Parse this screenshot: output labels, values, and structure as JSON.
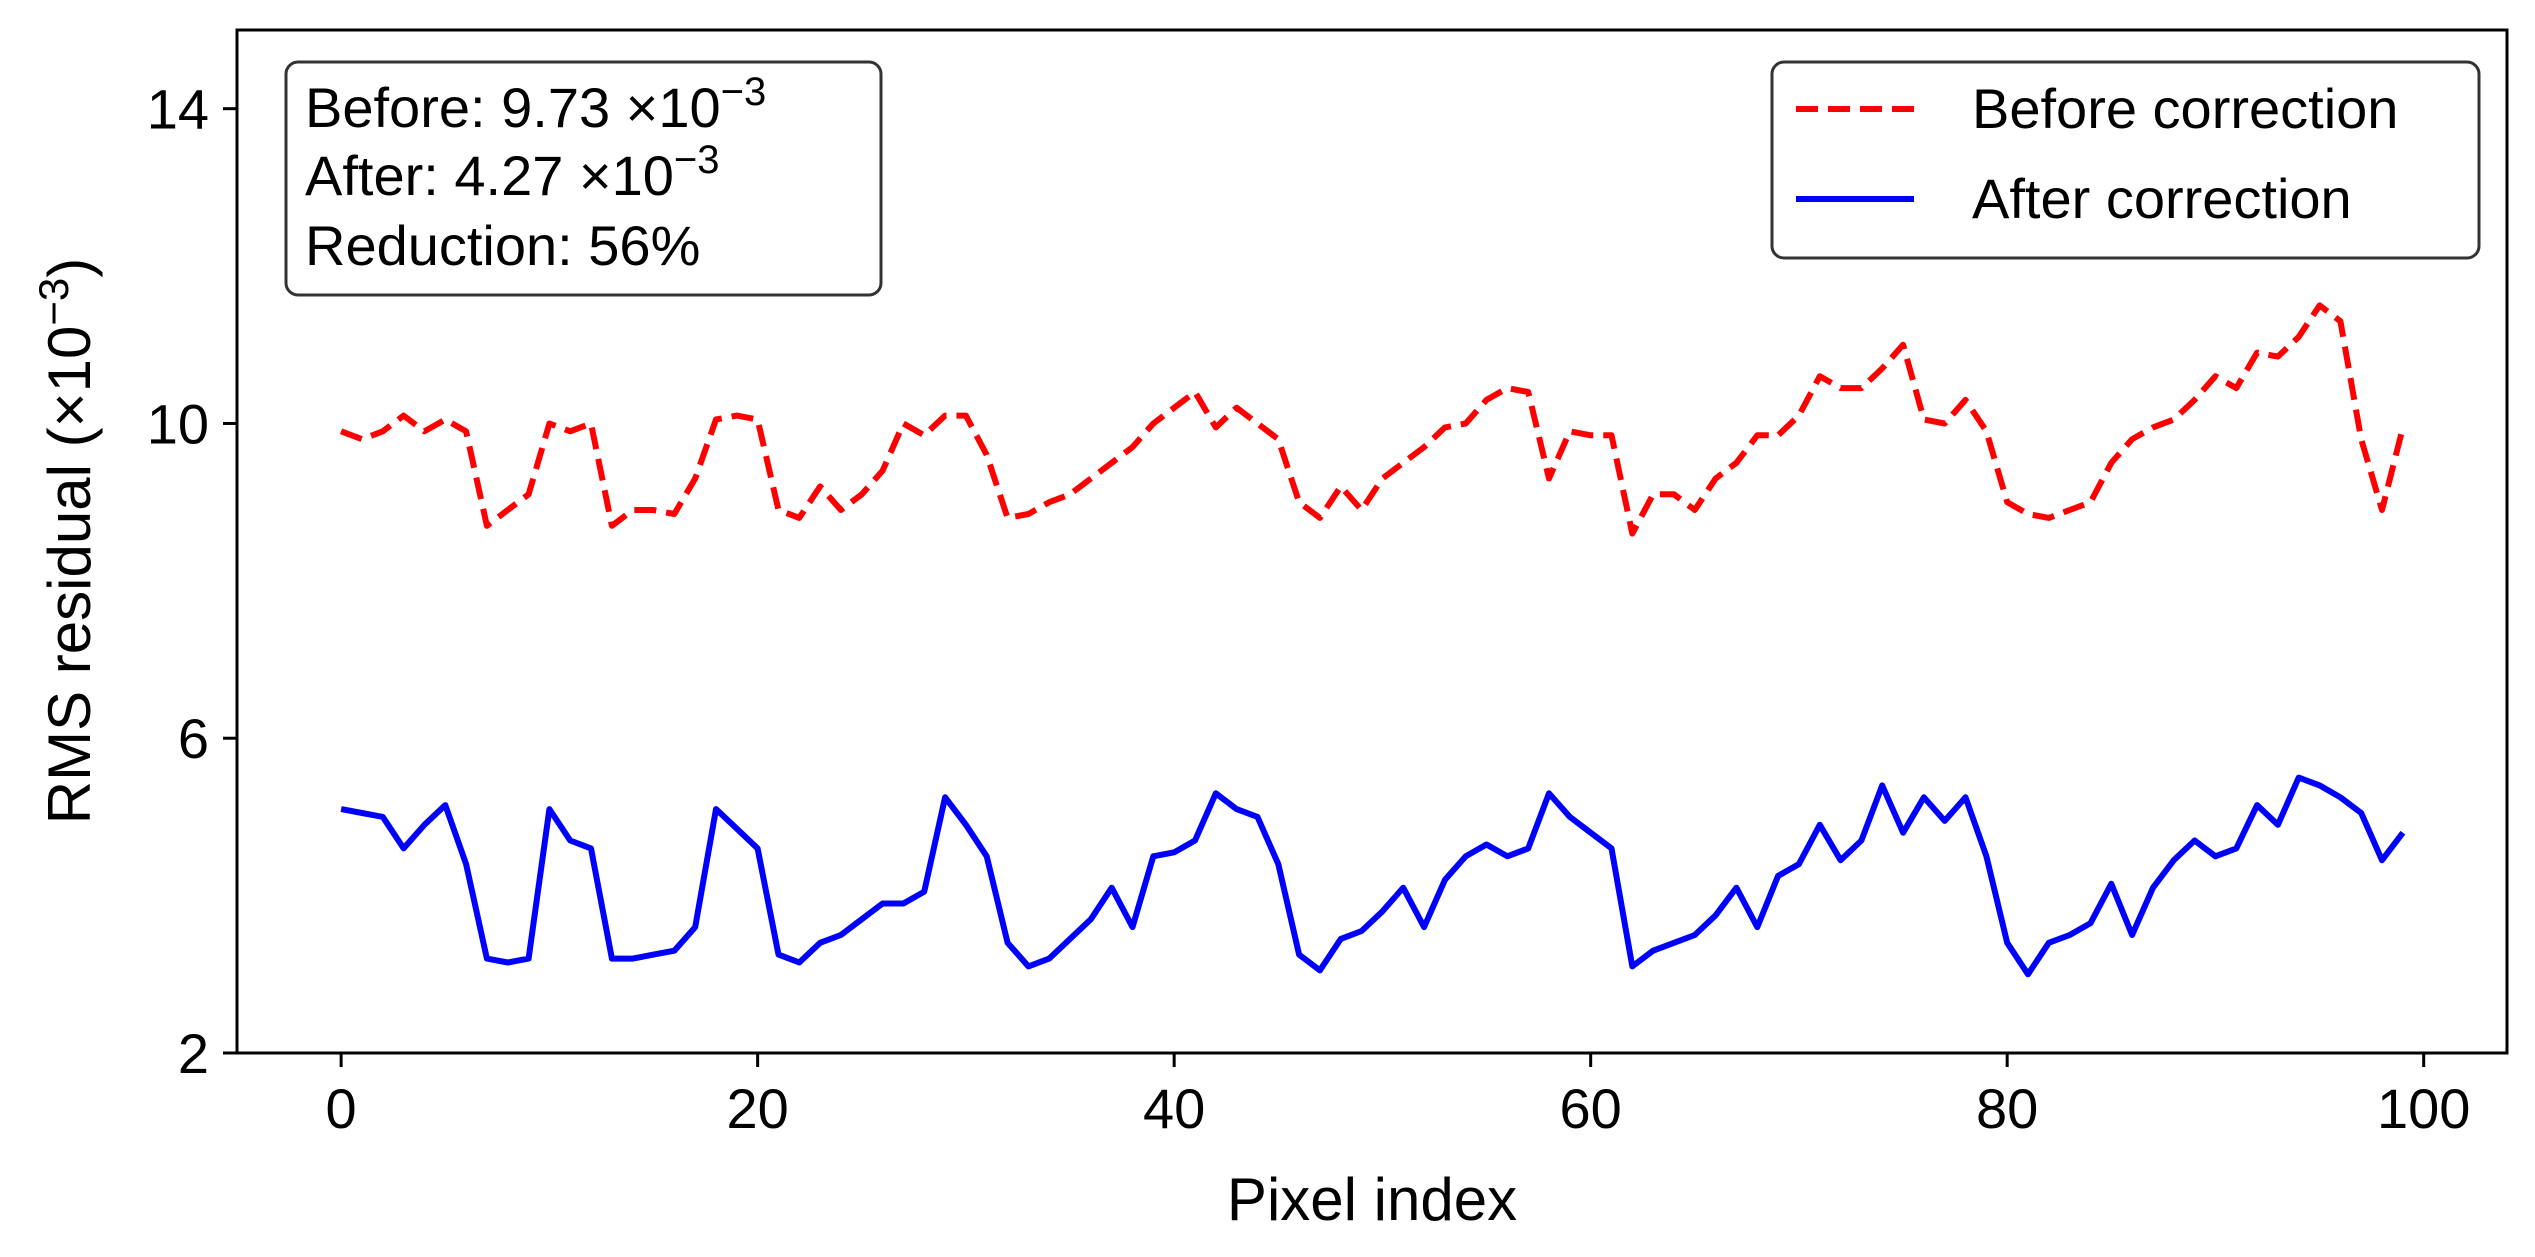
{
  "chart_data": {
    "type": "line",
    "xlabel": "Pixel index",
    "ylabel_main": "RMS residual (×10",
    "ylabel_exp": "−3",
    "ylabel_close": ")",
    "xlim": [
      -5,
      104
    ],
    "ylim": [
      2,
      15
    ],
    "xticks": [
      0,
      20,
      40,
      60,
      80,
      100
    ],
    "yticks": [
      2,
      6,
      10,
      14
    ],
    "grid": false,
    "legend_position": "top-right",
    "annotation": {
      "line1_label": "Before: 9.73 ×10",
      "line1_exp": "−3",
      "line2_label": "After: 4.27 ×10",
      "line2_exp": "−3",
      "line3": "Reduction: 56%"
    },
    "series": [
      {
        "name": "Before correction",
        "color": "#ff0000",
        "style": "dashed",
        "x": [
          0,
          1,
          2,
          3,
          4,
          5,
          6,
          7,
          8,
          9,
          10,
          11,
          12,
          13,
          14,
          15,
          16,
          17,
          18,
          19,
          20,
          21,
          22,
          23,
          24,
          25,
          26,
          27,
          28,
          29,
          30,
          31,
          32,
          33,
          34,
          35,
          36,
          37,
          38,
          39,
          40,
          41,
          42,
          43,
          44,
          45,
          46,
          47,
          48,
          49,
          50,
          51,
          52,
          53,
          54,
          55,
          56,
          57,
          58,
          59,
          60,
          61,
          62,
          63,
          64,
          65,
          66,
          67,
          68,
          69,
          70,
          71,
          72,
          73,
          74,
          75,
          76,
          77,
          78,
          79,
          80,
          81,
          82,
          83,
          84,
          85,
          86,
          87,
          88,
          89,
          90,
          91,
          92,
          93,
          94,
          95,
          96,
          97,
          98,
          99
        ],
        "y": [
          9.9,
          9.8,
          9.9,
          10.1,
          9.9,
          10.05,
          9.9,
          8.7,
          8.9,
          9.1,
          10.0,
          9.9,
          10.0,
          8.7,
          8.9,
          8.9,
          8.85,
          9.3,
          10.05,
          10.1,
          10.05,
          8.9,
          8.8,
          9.2,
          8.9,
          9.1,
          9.4,
          10.0,
          9.85,
          10.1,
          10.1,
          9.6,
          8.8,
          8.85,
          9.0,
          9.1,
          9.3,
          9.5,
          9.7,
          10.0,
          10.2,
          10.4,
          9.95,
          10.2,
          10.0,
          9.8,
          9.0,
          8.8,
          9.2,
          8.9,
          9.3,
          9.5,
          9.7,
          9.95,
          10.0,
          10.3,
          10.45,
          10.4,
          9.3,
          9.9,
          9.85,
          9.85,
          8.6,
          9.1,
          9.1,
          8.9,
          9.3,
          9.5,
          9.85,
          9.85,
          10.1,
          10.6,
          10.45,
          10.45,
          10.7,
          11.0,
          10.05,
          10.0,
          10.3,
          9.9,
          9.0,
          8.85,
          8.8,
          8.9,
          9.0,
          9.5,
          9.8,
          9.95,
          10.05,
          10.3,
          10.6,
          10.45,
          10.9,
          10.85,
          11.1,
          11.5,
          11.3,
          9.8,
          8.9,
          9.95
        ]
      },
      {
        "name": "After correction",
        "color": "#0000ff",
        "style": "solid",
        "x": [
          0,
          1,
          2,
          3,
          4,
          5,
          6,
          7,
          8,
          9,
          10,
          11,
          12,
          13,
          14,
          15,
          16,
          17,
          18,
          19,
          20,
          21,
          22,
          23,
          24,
          25,
          26,
          27,
          28,
          29,
          30,
          31,
          32,
          33,
          34,
          35,
          36,
          37,
          38,
          39,
          40,
          41,
          42,
          43,
          44,
          45,
          46,
          47,
          48,
          49,
          50,
          51,
          52,
          53,
          54,
          55,
          56,
          57,
          58,
          59,
          60,
          61,
          62,
          63,
          64,
          65,
          66,
          67,
          68,
          69,
          70,
          71,
          72,
          73,
          74,
          75,
          76,
          77,
          78,
          79,
          80,
          81,
          82,
          83,
          84,
          85,
          86,
          87,
          88,
          89,
          90,
          91,
          92,
          93,
          94,
          95,
          96,
          97,
          98,
          99
        ],
        "y": [
          5.1,
          5.05,
          5.0,
          4.6,
          4.9,
          5.15,
          4.4,
          3.2,
          3.15,
          3.2,
          5.1,
          4.7,
          4.6,
          3.2,
          3.2,
          3.25,
          3.3,
          3.6,
          5.1,
          4.85,
          4.6,
          3.25,
          3.15,
          3.4,
          3.5,
          3.7,
          3.9,
          3.9,
          4.05,
          5.25,
          4.9,
          4.5,
          3.4,
          3.1,
          3.2,
          3.45,
          3.7,
          4.1,
          3.6,
          4.5,
          4.55,
          4.7,
          5.3,
          5.1,
          5.0,
          4.4,
          3.25,
          3.05,
          3.45,
          3.55,
          3.8,
          4.1,
          3.6,
          4.2,
          4.5,
          4.65,
          4.5,
          4.6,
          5.3,
          5.0,
          4.8,
          4.6,
          3.1,
          3.3,
          3.4,
          3.5,
          3.75,
          4.1,
          3.6,
          4.25,
          4.4,
          4.9,
          4.45,
          4.7,
          5.4,
          4.8,
          5.25,
          4.95,
          5.25,
          4.5,
          3.4,
          3.0,
          3.4,
          3.5,
          3.65,
          4.15,
          3.5,
          4.1,
          4.45,
          4.7,
          4.5,
          4.6,
          5.15,
          4.9,
          5.5,
          5.4,
          5.25,
          5.05,
          4.45,
          4.8
        ]
      }
    ]
  }
}
